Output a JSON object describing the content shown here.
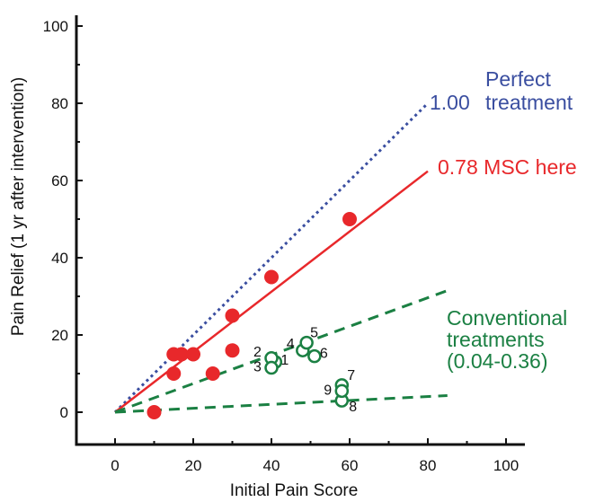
{
  "chart_data": {
    "type": "scatter",
    "xlabel": "Initial Pain Score",
    "ylabel": "Pain Relief (1 yr after intervention)",
    "xlim": [
      -10,
      101
    ],
    "ylim": [
      -9,
      104
    ],
    "xticks": [
      0,
      20,
      40,
      60,
      80,
      100
    ],
    "yticks": [
      0,
      20,
      40,
      60,
      80,
      100
    ],
    "minor_ticks": [
      10,
      30,
      50,
      70,
      90
    ],
    "grid": false,
    "colors": {
      "red": "#e8282b",
      "blue": "#3a4ea0",
      "green": "#1b8043"
    },
    "series": [
      {
        "kind": "points",
        "marker": "filled-circle",
        "color": "#e8282b",
        "points": [
          {
            "x": 10,
            "y": 0
          },
          {
            "x": 15,
            "y": 15
          },
          {
            "x": 15,
            "y": 10
          },
          {
            "x": 17,
            "y": 15
          },
          {
            "x": 20,
            "y": 15
          },
          {
            "x": 25,
            "y": 10
          },
          {
            "x": 30,
            "y": 25
          },
          {
            "x": 30,
            "y": 16
          },
          {
            "x": 40,
            "y": 35
          },
          {
            "x": 60,
            "y": 50
          }
        ]
      },
      {
        "kind": "points",
        "marker": "open-circle",
        "color": "#1b8043",
        "points": [
          {
            "x": 41,
            "y": 13,
            "label": "1"
          },
          {
            "x": 40,
            "y": 14,
            "label": "2"
          },
          {
            "x": 40,
            "y": 11.5,
            "label": "3"
          },
          {
            "x": 48,
            "y": 16,
            "label": "4"
          },
          {
            "x": 49,
            "y": 18,
            "label": "5"
          },
          {
            "x": 51,
            "y": 14.5,
            "label": "6"
          },
          {
            "x": 58,
            "y": 7,
            "label": "7"
          },
          {
            "x": 58,
            "y": 3,
            "label": "8"
          },
          {
            "x": 58,
            "y": 5.5,
            "label": "9"
          }
        ]
      },
      {
        "kind": "line",
        "style": "dotted",
        "color": "#3a4ea0",
        "x": [
          0,
          80
        ],
        "y": [
          0,
          80
        ],
        "label_lines": [
          "1.00",
          "Perfect",
          "treatment"
        ]
      },
      {
        "kind": "line",
        "style": "solid",
        "color": "#e8282b",
        "x": [
          0,
          80
        ],
        "y": [
          0,
          62.4
        ],
        "label_lines": [
          "0.78 MSC here"
        ]
      },
      {
        "kind": "line",
        "style": "dashed",
        "color": "#1b8043",
        "x": [
          0,
          85
        ],
        "y": [
          0,
          31.5
        ],
        "label_lines": [
          "Conventional",
          "treatments",
          "(0.04-0.36)"
        ]
      },
      {
        "kind": "line",
        "style": "dashed",
        "color": "#1b8043",
        "x": [
          0,
          85
        ],
        "y": [
          0,
          4.3
        ],
        "label_lines": []
      }
    ]
  }
}
